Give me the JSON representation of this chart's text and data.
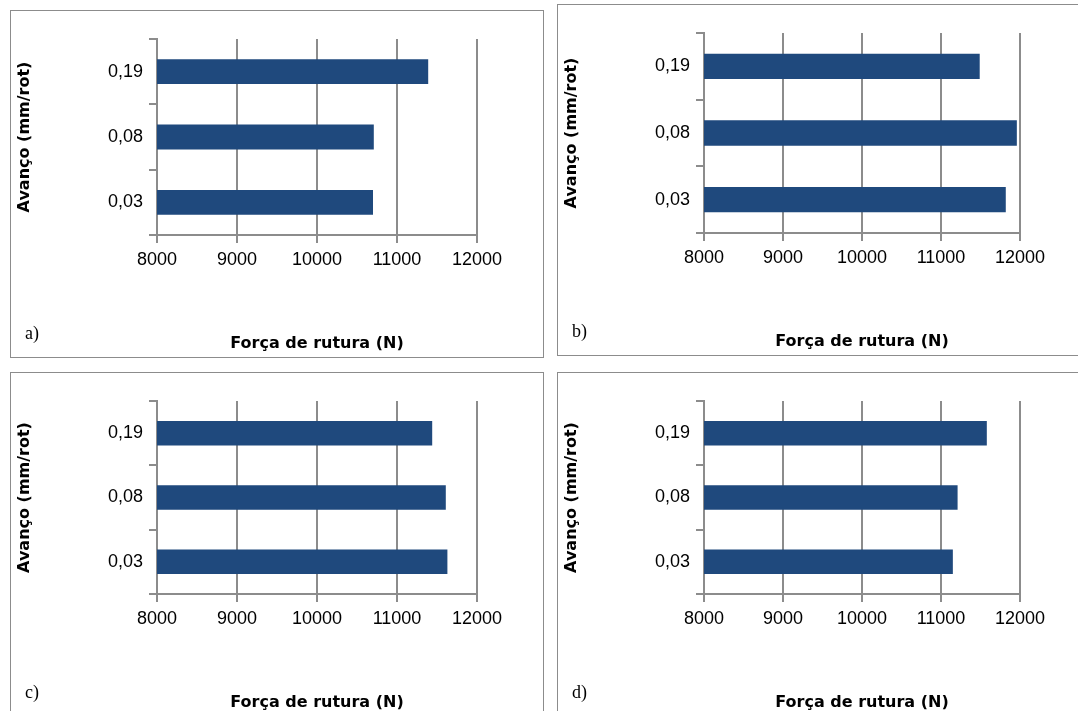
{
  "chart_data": [
    {
      "type": "bar",
      "orientation": "horizontal",
      "xlabel": "Força de rutura (N)",
      "ylabel": "Avanço (mm/rot)",
      "categories": [
        "0,19",
        "0,08",
        "0,03"
      ],
      "values": [
        11390,
        10710,
        10700
      ],
      "color": "#1f497d",
      "xlim": [
        8000,
        12000
      ],
      "xticks": [
        8000,
        9000,
        10000,
        11000,
        12000
      ],
      "grid": "x",
      "annotations": [
        "a)"
      ]
    },
    {
      "type": "bar",
      "orientation": "horizontal",
      "xlabel": "Força de rutura (N)",
      "ylabel": "Avanço (mm/rot)",
      "categories": [
        "0,19",
        "0,08",
        "0,03"
      ],
      "values": [
        11490,
        11960,
        11820
      ],
      "color": "#1f497d",
      "xlim": [
        8000,
        12000
      ],
      "xticks": [
        8000,
        9000,
        10000,
        11000,
        12000
      ],
      "grid": "x",
      "annotations": [
        "b)"
      ]
    },
    {
      "type": "bar",
      "orientation": "horizontal",
      "xlabel": "Força de rutura (N)",
      "ylabel": "Avanço (mm/rot)",
      "categories": [
        "0,19",
        "0,08",
        "0,03"
      ],
      "values": [
        11440,
        11610,
        11630
      ],
      "color": "#1f497d",
      "xlim": [
        8000,
        12000
      ],
      "xticks": [
        8000,
        9000,
        10000,
        11000,
        12000
      ],
      "grid": "x",
      "annotations": [
        "c)"
      ]
    },
    {
      "type": "bar",
      "orientation": "horizontal",
      "xlabel": "Força de rutura (N)",
      "ylabel": "Avanço (mm/rot)",
      "categories": [
        "0,19",
        "0,08",
        "0,03"
      ],
      "values": [
        11580,
        11210,
        11150
      ],
      "color": "#1f497d",
      "xlim": [
        8000,
        12000
      ],
      "xticks": [
        8000,
        9000,
        10000,
        11000,
        12000
      ],
      "grid": "x",
      "annotations": [
        "d)"
      ]
    }
  ]
}
